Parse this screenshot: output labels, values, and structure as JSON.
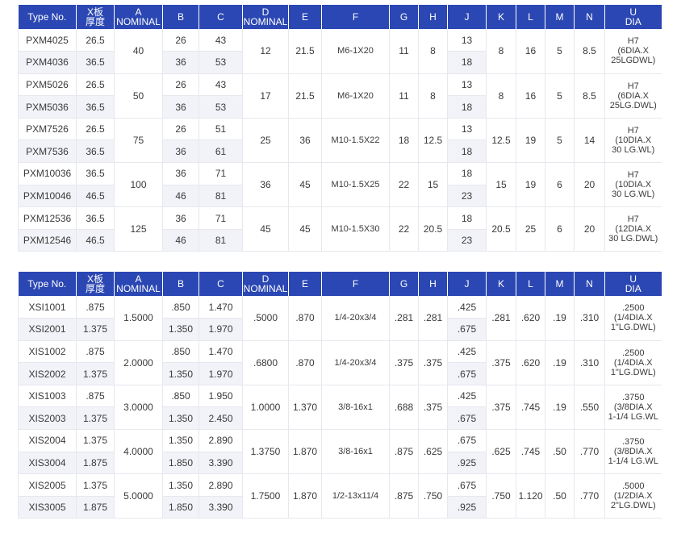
{
  "headers": {
    "type_no": "Type No.",
    "x_line1": "X板",
    "x_line2": "厚度",
    "a_line1": "A",
    "a_line2": "NOMINAL",
    "b": "B",
    "c": "C",
    "d_line1": "D",
    "d_line2": "NOMINAL",
    "e": "E",
    "f": "F",
    "g": "G",
    "h": "H",
    "j": "J",
    "k": "K",
    "l": "L",
    "m": "M",
    "n": "N",
    "u_line1": "U",
    "u_line2": "DIA"
  },
  "metric_table": {
    "groups": [
      {
        "rows": [
          {
            "type": "PXM4025",
            "x": "26.5",
            "b": "26",
            "c": "43",
            "j": "13"
          },
          {
            "type": "PXM4036",
            "x": "36.5",
            "b": "36",
            "c": "53",
            "j": "18"
          }
        ],
        "a": "40",
        "d": "12",
        "e": "21.5",
        "f": "M6-1X20",
        "g": "11",
        "h": "8",
        "k": "8",
        "l": "16",
        "m": "5",
        "n": "8.5",
        "u": [
          "H7",
          "(6DIA.X",
          "25LGDWL)"
        ]
      },
      {
        "rows": [
          {
            "type": "PXM5026",
            "x": "26.5",
            "b": "26",
            "c": "43",
            "j": "13"
          },
          {
            "type": "PXM5036",
            "x": "36.5",
            "b": "36",
            "c": "53",
            "j": "18"
          }
        ],
        "a": "50",
        "d": "17",
        "e": "21.5",
        "f": "M6-1X20",
        "g": "11",
        "h": "8",
        "k": "8",
        "l": "16",
        "m": "5",
        "n": "8.5",
        "u": [
          "H7",
          "(6DIA.X",
          "25LG.DWL)"
        ]
      },
      {
        "rows": [
          {
            "type": "PXM7526",
            "x": "26.5",
            "b": "26",
            "c": "51",
            "j": "13"
          },
          {
            "type": "PXM7536",
            "x": "36.5",
            "b": "36",
            "c": "61",
            "j": "18"
          }
        ],
        "a": "75",
        "d": "25",
        "e": "36",
        "f": "M10-1.5X22",
        "g": "18",
        "h": "12.5",
        "k": "12.5",
        "l": "19",
        "m": "5",
        "n": "14",
        "u": [
          "H7",
          "(10DIA.X",
          "30 LG.WL)"
        ]
      },
      {
        "rows": [
          {
            "type": "PXM10036",
            "x": "36.5",
            "b": "36",
            "c": "71",
            "j": "18"
          },
          {
            "type": "PXM10046",
            "x": "46.5",
            "b": "46",
            "c": "81",
            "j": "23"
          }
        ],
        "a": "100",
        "d": "36",
        "e": "45",
        "f": "M10-1.5X25",
        "g": "22",
        "h": "15",
        "k": "15",
        "l": "19",
        "m": "6",
        "n": "20",
        "u": [
          "H7",
          "(10DIA.X",
          "30 LG.WL)"
        ]
      },
      {
        "rows": [
          {
            "type": "PXM12536",
            "x": "36.5",
            "b": "36",
            "c": "71",
            "j": "18"
          },
          {
            "type": "PXM12546",
            "x": "46.5",
            "b": "46",
            "c": "81",
            "j": "23"
          }
        ],
        "a": "125",
        "d": "45",
        "e": "45",
        "f": "M10-1.5X30",
        "g": "22",
        "h": "20.5",
        "k": "20.5",
        "l": "25",
        "m": "6",
        "n": "20",
        "u": [
          "H7",
          "(12DIA.X",
          "30 LG.DWL)"
        ]
      }
    ]
  },
  "inch_table": {
    "groups": [
      {
        "rows": [
          {
            "type": "XSI1001",
            "x": ".875",
            "b": ".850",
            "c": "1.470",
            "j": ".425"
          },
          {
            "type": "XSI2001",
            "x": "1.375",
            "b": "1.350",
            "c": "1.970",
            "j": ".675"
          }
        ],
        "a": "1.5000",
        "d": ".5000",
        "e": ".870",
        "f": "1/4-20x3/4",
        "g": ".281",
        "h": ".281",
        "k": ".281",
        "l": ".620",
        "m": ".19",
        "n": ".310",
        "u": [
          ".2500",
          "(1/4DIA.X",
          "1\"LG.DWL)"
        ]
      },
      {
        "rows": [
          {
            "type": "XIS1002",
            "x": ".875",
            "b": ".850",
            "c": "1.470",
            "j": ".425"
          },
          {
            "type": "XIS2002",
            "x": "1.375",
            "b": "1.350",
            "c": "1.970",
            "j": ".675"
          }
        ],
        "a": "2.0000",
        "d": ".6800",
        "e": ".870",
        "f": "1/4-20x3/4",
        "g": ".375",
        "h": ".375",
        "k": ".375",
        "l": ".620",
        "m": ".19",
        "n": ".310",
        "u": [
          ".2500",
          "(1/4DIA.X",
          "1\"LG.DWL)"
        ]
      },
      {
        "rows": [
          {
            "type": "XIS1003",
            "x": ".875",
            "b": ".850",
            "c": "1.950",
            "j": ".425"
          },
          {
            "type": "XIS2003",
            "x": "1.375",
            "b": "1.350",
            "c": "2.450",
            "j": ".675"
          }
        ],
        "a": "3.0000",
        "d": "1.0000",
        "e": "1.370",
        "f": "3/8-16x1",
        "g": ".688",
        "h": ".375",
        "k": ".375",
        "l": ".745",
        "m": ".19",
        "n": ".550",
        "u": [
          ".3750",
          "(3/8DIA.X",
          "1-1/4 LG.WL"
        ]
      },
      {
        "rows": [
          {
            "type": "XIS2004",
            "x": "1.375",
            "b": "1.350",
            "c": "2.890",
            "j": ".675"
          },
          {
            "type": "XIS3004",
            "x": "1.875",
            "b": "1.850",
            "c": "3.390",
            "j": ".925"
          }
        ],
        "a": "4.0000",
        "d": "1.3750",
        "e": "1.870",
        "f": "3/8-16x1",
        "g": ".875",
        "h": ".625",
        "k": ".625",
        "l": ".745",
        "m": ".50",
        "n": ".770",
        "u": [
          ".3750",
          "(3/8DIA.X",
          "1-1/4 LG.WL"
        ]
      },
      {
        "rows": [
          {
            "type": "XIS2005",
            "x": "1.375",
            "b": "1.350",
            "c": "2.890",
            "j": ".675"
          },
          {
            "type": "XIS3005",
            "x": "1.875",
            "b": "1.850",
            "c": "3.390",
            "j": ".925"
          }
        ],
        "a": "5.0000",
        "d": "1.7500",
        "e": "1.870",
        "f": "1/2-13x11/4",
        "g": ".875",
        "h": ".750",
        "k": ".750",
        "l": "1.120",
        "m": ".50",
        "n": ".770",
        "u": [
          ".5000",
          "(1/2DIA.X",
          "2\"LG.DWL)"
        ]
      }
    ]
  },
  "colors": {
    "header_bg": "#2b47b3",
    "header_text": "#ffffff",
    "row_shade": "#f1f3f8",
    "grid_line": "#e6e8ee"
  }
}
